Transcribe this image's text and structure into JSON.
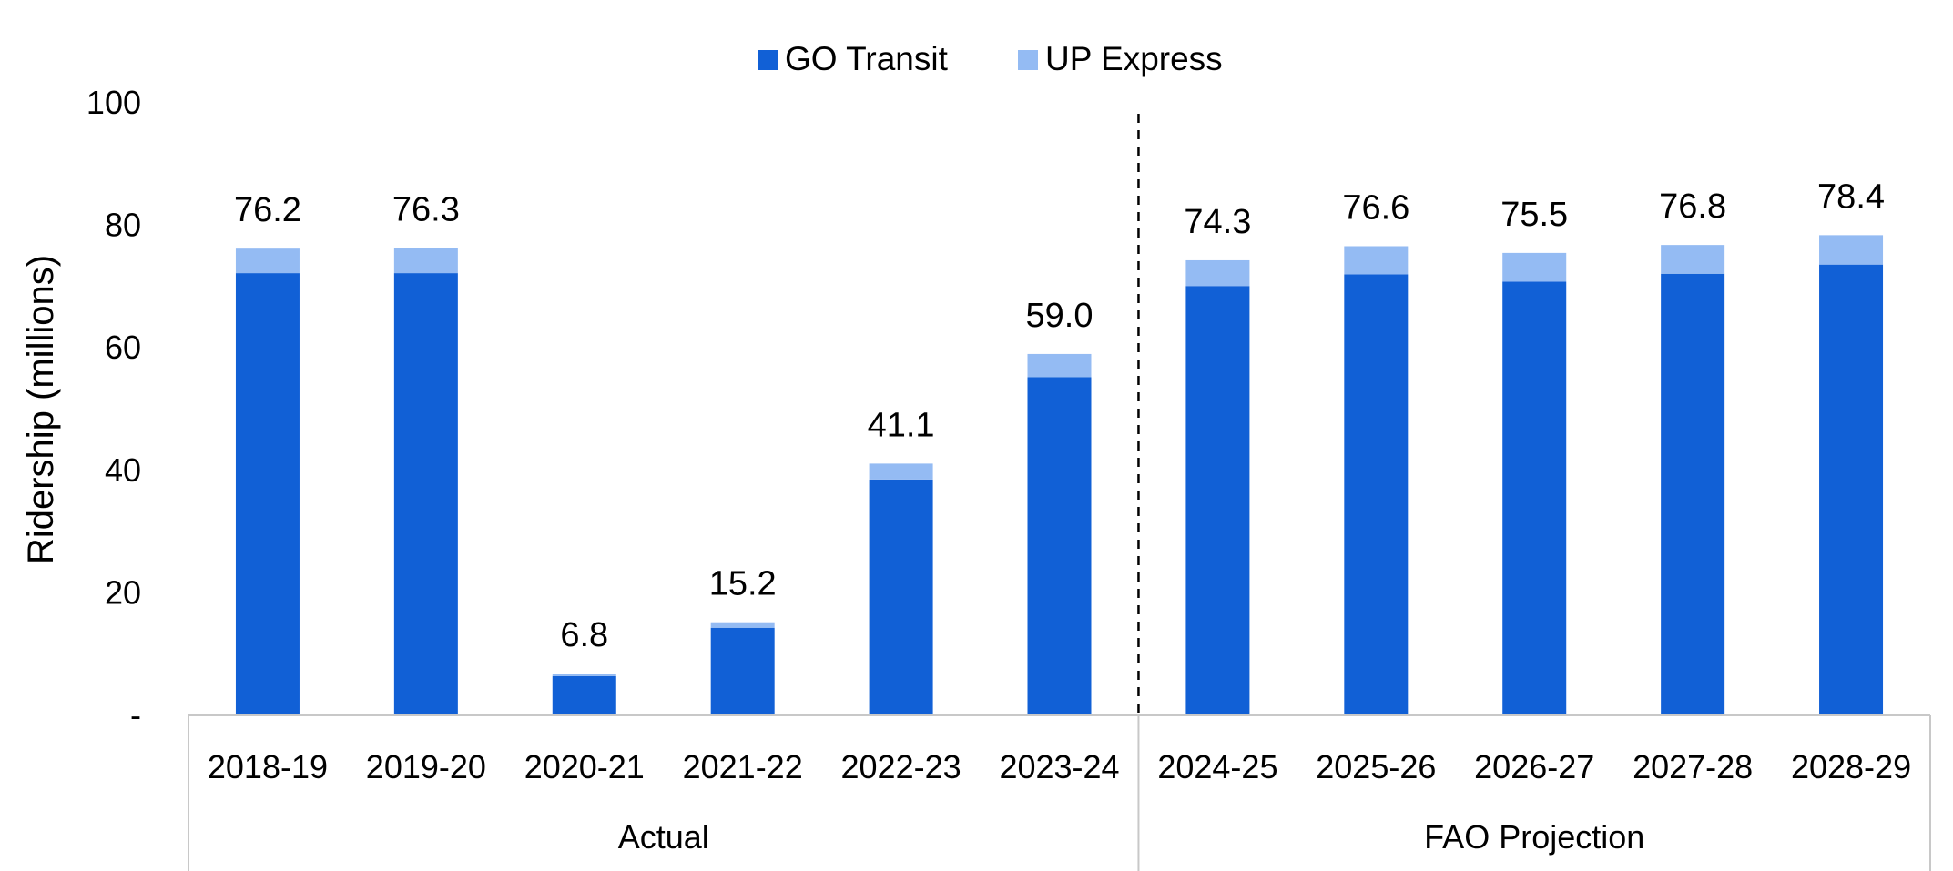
{
  "chart_data": {
    "type": "bar",
    "stacked": true,
    "title": "",
    "ylabel": "Ridership (millions)",
    "xlabel": "",
    "ylim": [
      0,
      100
    ],
    "yticks": [
      {
        "value": 0,
        "label": "-"
      },
      {
        "value": 20,
        "label": "20"
      },
      {
        "value": 40,
        "label": "40"
      },
      {
        "value": 60,
        "label": "60"
      },
      {
        "value": 80,
        "label": "80"
      },
      {
        "value": 100,
        "label": "100"
      }
    ],
    "grid": false,
    "legend_position": "top-center",
    "categories": [
      "2018-19",
      "2019-20",
      "2020-21",
      "2021-22",
      "2022-23",
      "2023-24",
      "2024-25",
      "2025-26",
      "2026-27",
      "2027-28",
      "2028-29"
    ],
    "series": [
      {
        "name": "GO Transit",
        "color": "#1160d6",
        "values": [
          72.2,
          72.2,
          6.4,
          14.3,
          38.5,
          55.2,
          70.1,
          72.0,
          70.8,
          72.1,
          73.6
        ]
      },
      {
        "name": "UP Express",
        "color": "#94bbf3",
        "values": [
          4.0,
          4.1,
          0.4,
          0.9,
          2.6,
          3.8,
          4.2,
          4.6,
          4.7,
          4.7,
          4.8
        ]
      }
    ],
    "totals": [
      "76.2",
      "76.3",
      "6.8",
      "15.2",
      "41.1",
      "59.0",
      "74.3",
      "76.6",
      "75.5",
      "76.8",
      "78.4"
    ],
    "groups": [
      {
        "label": "Actual",
        "start": 0,
        "end": 5
      },
      {
        "label": "FAO Projection",
        "start": 6,
        "end": 10
      }
    ],
    "divider_style": "dashed"
  }
}
